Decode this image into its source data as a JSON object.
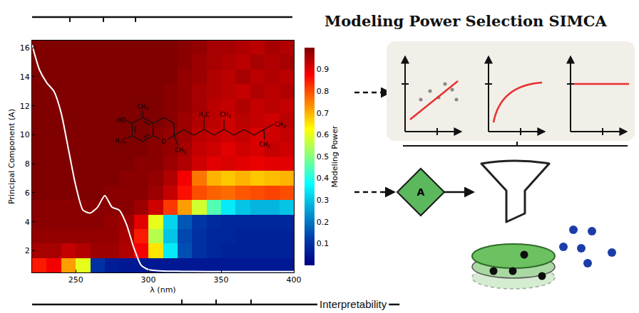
{
  "header": {
    "title": "Modeling Power Selection SIMCA"
  },
  "footer": {
    "label": "Interpretability"
  },
  "diagram": {
    "node": "A"
  },
  "structure": {
    "labels": [
      "HO",
      "CH3",
      "H3C",
      "O",
      "CH3",
      "H3C",
      "CH3",
      "CH3",
      "CH3"
    ]
  },
  "chart_data": {
    "type": "heatmap",
    "x_label": "λ (nm)",
    "y_label": "Principal Component (A)",
    "colorbar_title": "Modeling Power",
    "color": "Jet",
    "x": [
      225,
      235,
      245,
      255,
      265,
      275,
      285,
      295,
      305,
      315,
      325,
      335,
      345,
      355,
      365,
      375,
      385,
      395
    ],
    "y": [
      1,
      2,
      3,
      4,
      5,
      6,
      7,
      8,
      9,
      10,
      11,
      12,
      13,
      14,
      15,
      16
    ],
    "z": [
      [
        0.85,
        0.88,
        0.72,
        0.6,
        0.1,
        0.06,
        0.05,
        0.05,
        0.05,
        0.05,
        0.05,
        0.05,
        0.05,
        0.05,
        0.05,
        0.05,
        0.05,
        0.05
      ],
      [
        0.96,
        0.96,
        0.93,
        0.95,
        0.97,
        0.97,
        0.95,
        0.88,
        0.65,
        0.35,
        0.15,
        0.1,
        0.08,
        0.07,
        0.07,
        0.07,
        0.07,
        0.07
      ],
      [
        0.98,
        0.98,
        0.98,
        0.98,
        0.98,
        0.98,
        0.96,
        0.85,
        0.55,
        0.3,
        0.14,
        0.1,
        0.08,
        0.08,
        0.07,
        0.07,
        0.07,
        0.07
      ],
      [
        0.99,
        0.99,
        0.99,
        0.99,
        0.99,
        0.98,
        0.97,
        0.9,
        0.6,
        0.32,
        0.16,
        0.11,
        0.09,
        0.08,
        0.08,
        0.08,
        0.08,
        0.08
      ],
      [
        0.99,
        0.99,
        0.99,
        0.99,
        0.99,
        0.99,
        0.99,
        0.97,
        0.92,
        0.82,
        0.72,
        0.58,
        0.45,
        0.35,
        0.3,
        0.28,
        0.28,
        0.3
      ],
      [
        1,
        1,
        1,
        1,
        1,
        0.99,
        0.99,
        0.99,
        0.97,
        0.93,
        0.86,
        0.8,
        0.78,
        0.77,
        0.79,
        0.8,
        0.81,
        0.8
      ],
      [
        1,
        1,
        1,
        1,
        1,
        1,
        0.99,
        0.99,
        0.98,
        0.95,
        0.88,
        0.76,
        0.7,
        0.68,
        0.7,
        0.68,
        0.69,
        0.7
      ],
      [
        1,
        1,
        1,
        1,
        1,
        1,
        1,
        0.99,
        0.99,
        0.97,
        0.95,
        0.92,
        0.9,
        0.91,
        0.9,
        0.89,
        0.9,
        0.9
      ],
      [
        1,
        1,
        1,
        1,
        1,
        1,
        1,
        1,
        0.99,
        0.98,
        0.96,
        0.93,
        0.92,
        0.9,
        0.92,
        0.91,
        0.93,
        0.92
      ],
      [
        1,
        1,
        1,
        1,
        1,
        1,
        1,
        1,
        0.99,
        0.98,
        0.97,
        0.94,
        0.93,
        0.92,
        0.93,
        0.91,
        0.92,
        0.93
      ],
      [
        1,
        1,
        1,
        1,
        1,
        1,
        1,
        1,
        1,
        0.99,
        0.97,
        0.95,
        0.94,
        0.92,
        0.94,
        0.93,
        0.92,
        0.94
      ],
      [
        1,
        1,
        1,
        1,
        1,
        1,
        1,
        1,
        1,
        0.99,
        0.98,
        0.96,
        0.94,
        0.93,
        0.95,
        0.93,
        0.94,
        0.93
      ],
      [
        1,
        1,
        1,
        1,
        1,
        1,
        1,
        1,
        1,
        0.99,
        0.98,
        0.96,
        0.95,
        0.94,
        0.93,
        0.95,
        0.94,
        0.95
      ],
      [
        1,
        1,
        1,
        1,
        1,
        1,
        1,
        1,
        1,
        1,
        0.98,
        0.97,
        0.95,
        0.94,
        0.96,
        0.94,
        0.95,
        0.94
      ],
      [
        1,
        1,
        1,
        1,
        1,
        1,
        1,
        1,
        1,
        1,
        0.99,
        0.97,
        0.96,
        0.95,
        0.94,
        0.96,
        0.95,
        0.96
      ],
      [
        1,
        1,
        1,
        1,
        1,
        1,
        1,
        1,
        1,
        1,
        0.99,
        0.98,
        0.96,
        0.96,
        0.95,
        0.94,
        0.96,
        0.95
      ]
    ],
    "zlim": [
      0,
      1
    ],
    "zticks": [
      0.1,
      0.2,
      0.3,
      0.4,
      0.5,
      0.6,
      0.7,
      0.8,
      0.9
    ],
    "xlim": [
      220,
      400
    ],
    "xticks": [
      250,
      300,
      350,
      400
    ],
    "ylim": [
      0.5,
      16.5
    ],
    "yticks": [
      2,
      4,
      6,
      8,
      10,
      12,
      14,
      16
    ],
    "grid": false,
    "series": [
      {
        "type": "line",
        "color": "#ffffff",
        "x": [
          220,
          225,
          230,
          235,
          240,
          245,
          250,
          255,
          260,
          265,
          270,
          275,
          280,
          285,
          290,
          295,
          300,
          310,
          320,
          340,
          360,
          380,
          400
        ],
        "values": [
          16.2,
          14.5,
          13.6,
          13.0,
          11.5,
          9.0,
          6.5,
          4.8,
          4.6,
          5.0,
          5.8,
          5.0,
          4.8,
          3.8,
          2.2,
          1.0,
          0.7,
          0.6,
          0.58,
          0.56,
          0.56,
          0.56,
          0.56
        ]
      }
    ]
  }
}
